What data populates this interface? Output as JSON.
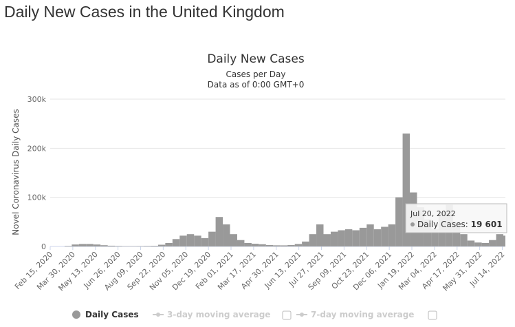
{
  "page": {
    "heading": "Daily New Cases in the United Kingdom"
  },
  "chart_data": {
    "type": "bar",
    "title": "Daily New Cases",
    "subtitle_lines": [
      "Cases per Day",
      "Data as of 0:00 GMT+0"
    ],
    "ylabel": "Novel Coronavirus Daily Cases",
    "ylim": [
      0,
      300000
    ],
    "yticks": [
      0,
      100000,
      200000,
      300000
    ],
    "ytick_labels": [
      "0",
      "100k",
      "200k",
      "300k"
    ],
    "xlim": [
      "2020-02-15",
      "2022-07-20"
    ],
    "xtick_labels": [
      "Feb 15, 2020",
      "Mar 30, 2020",
      "May 13, 2020",
      "Jun 26, 2020",
      "Aug 09, 2020",
      "Sep 22, 2020",
      "Nov 05, 2020",
      "Dec 19, 2020",
      "Feb 01, 2021",
      "Mar 17, 2021",
      "Apr 30, 2021",
      "Jun 13, 2021",
      "Jul 27, 2021",
      "Sep 09, 2021",
      "Oct 23, 2021",
      "Dec 06, 2021",
      "Jan 19, 2022",
      "Mar 04, 2022",
      "Apr 17, 2022",
      "May 31, 2022",
      "Jul 14, 2022"
    ],
    "grid": true,
    "series": [
      {
        "name": "Daily Cases",
        "color": "#999999",
        "x": [
          "2020-02-15",
          "2020-02-29",
          "2020-03-14",
          "2020-03-28",
          "2020-04-11",
          "2020-04-25",
          "2020-05-09",
          "2020-05-23",
          "2020-06-06",
          "2020-06-20",
          "2020-07-04",
          "2020-07-18",
          "2020-08-01",
          "2020-08-15",
          "2020-08-29",
          "2020-09-12",
          "2020-09-26",
          "2020-10-10",
          "2020-10-24",
          "2020-11-07",
          "2020-11-21",
          "2020-12-05",
          "2020-12-19",
          "2021-01-02",
          "2021-01-16",
          "2021-01-30",
          "2021-02-13",
          "2021-02-27",
          "2021-03-13",
          "2021-03-27",
          "2021-04-10",
          "2021-04-24",
          "2021-05-08",
          "2021-05-22",
          "2021-06-05",
          "2021-06-19",
          "2021-07-03",
          "2021-07-17",
          "2021-07-31",
          "2021-08-14",
          "2021-08-28",
          "2021-09-11",
          "2021-09-25",
          "2021-10-09",
          "2021-10-23",
          "2021-11-06",
          "2021-11-20",
          "2021-12-04",
          "2021-12-18",
          "2022-01-01",
          "2022-01-15",
          "2022-01-29",
          "2022-02-12",
          "2022-02-26",
          "2022-03-12",
          "2022-03-26",
          "2022-04-09",
          "2022-04-23",
          "2022-05-07",
          "2022-05-21",
          "2022-06-04",
          "2022-06-18",
          "2022-07-02",
          "2022-07-16",
          "2022-07-20"
        ],
        "values": [
          0,
          0,
          1000,
          4000,
          5000,
          5000,
          4000,
          2500,
          1500,
          1000,
          700,
          700,
          800,
          1000,
          1300,
          3500,
          7000,
          15000,
          22000,
          25000,
          22000,
          17000,
          30000,
          60000,
          45000,
          25000,
          13000,
          7000,
          5500,
          4500,
          2800,
          2300,
          2200,
          2800,
          5000,
          10000,
          25000,
          45000,
          25000,
          30000,
          33000,
          35000,
          33000,
          38000,
          45000,
          35000,
          40000,
          45000,
          100000,
          230000,
          110000,
          80000,
          55000,
          35000,
          70000,
          85000,
          50000,
          25000,
          12000,
          8000,
          7000,
          13000,
          25000,
          22000,
          19601
        ]
      }
    ],
    "legend": {
      "placement": "bottom",
      "items": [
        {
          "label": "Daily Cases",
          "active": true
        },
        {
          "label": "3-day moving average",
          "active": false
        },
        {
          "label": "7-day moving average",
          "active": false
        }
      ]
    },
    "tooltip": {
      "date": "Jul 20, 2022",
      "label": "Daily Cases:",
      "value": "19 601"
    }
  }
}
